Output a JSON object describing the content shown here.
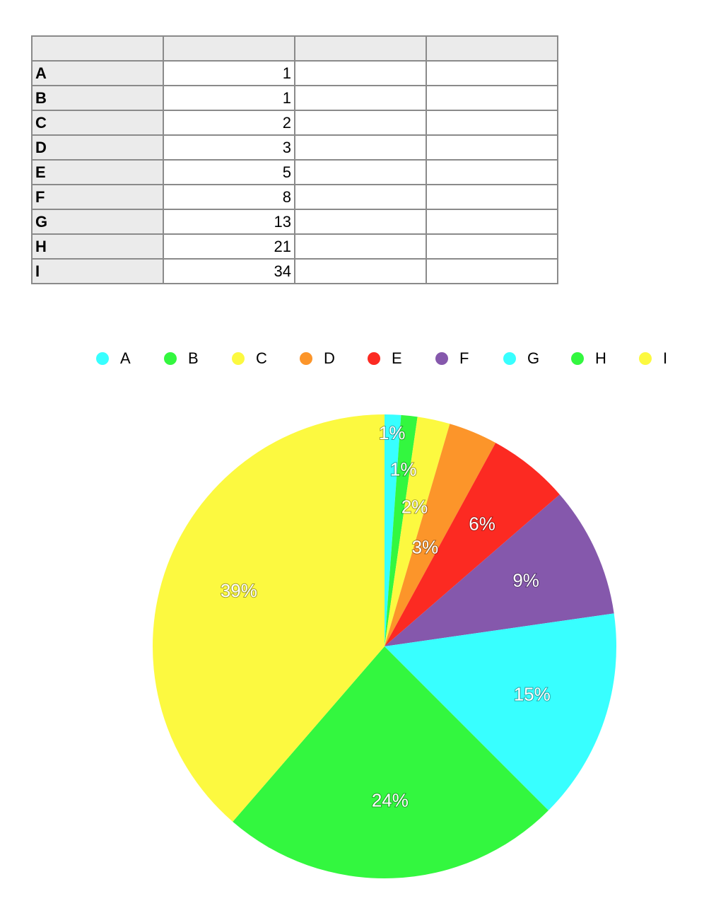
{
  "table": {
    "header": [
      "",
      "",
      "",
      ""
    ],
    "rows": [
      {
        "label": "A",
        "value": "1"
      },
      {
        "label": "B",
        "value": "1"
      },
      {
        "label": "C",
        "value": "2"
      },
      {
        "label": "D",
        "value": "3"
      },
      {
        "label": "E",
        "value": "5"
      },
      {
        "label": "F",
        "value": "8"
      },
      {
        "label": "G",
        "value": "13"
      },
      {
        "label": "H",
        "value": "21"
      },
      {
        "label": "I",
        "value": "34"
      }
    ]
  },
  "chart_data": {
    "type": "pie",
    "categories": [
      "A",
      "B",
      "C",
      "D",
      "E",
      "F",
      "G",
      "H",
      "I"
    ],
    "values": [
      1,
      1,
      2,
      3,
      5,
      8,
      13,
      21,
      34
    ],
    "data_labels": [
      "1%",
      "1%",
      "2%",
      "3%",
      "6%",
      "9%",
      "15%",
      "24%",
      "39%"
    ],
    "colors": [
      "#38ffff",
      "#33f73f",
      "#fcf940",
      "#fc952a",
      "#fc2a22",
      "#8558ac",
      "#38ffff",
      "#33f73f",
      "#fcf940"
    ],
    "legend_position": "top",
    "start": "top, clockwise"
  }
}
